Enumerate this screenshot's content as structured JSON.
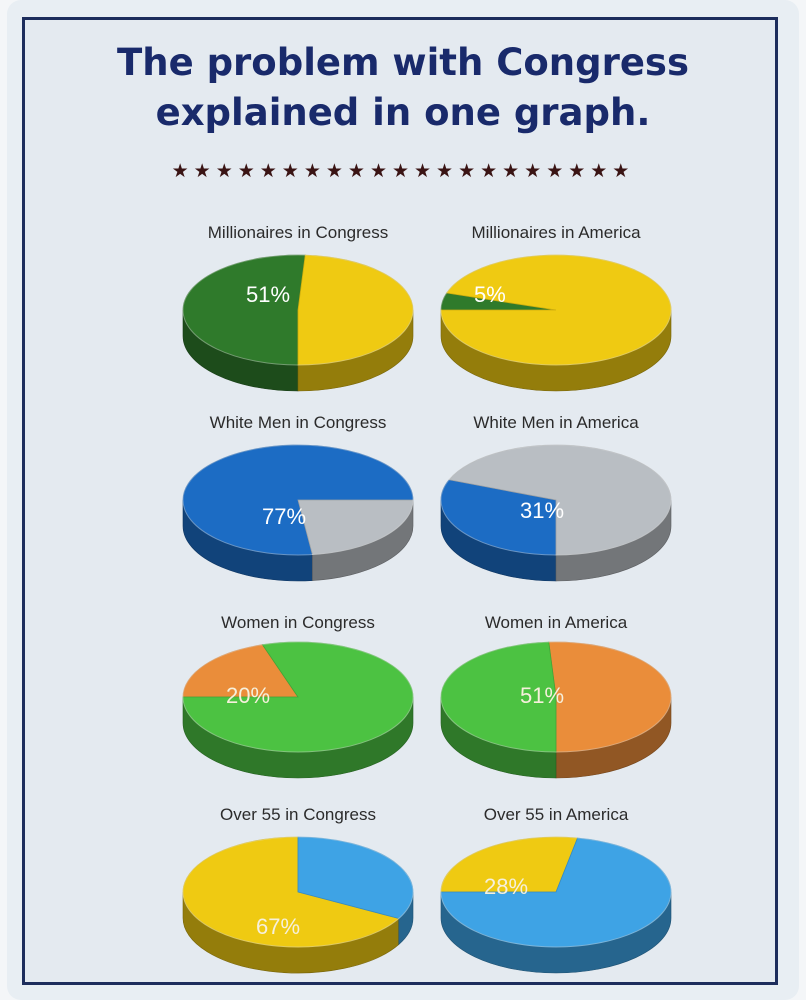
{
  "header": {
    "title_line1": "The problem with Congress",
    "title_line2": "explained in one graph.",
    "stars": "★★★★★★★★★★★★★★★★★★★★★"
  },
  "colors": {
    "green_dark": "#2f7a2b",
    "yellow": "#efca12",
    "blue": "#1c6cc4",
    "gray": "#b9bec3",
    "green_light": "#4cc242",
    "orange": "#ea8d3a",
    "sky": "#3ea3e5"
  },
  "chart_data": [
    {
      "type": "pie",
      "title": "Millionaires in Congress",
      "slices": [
        {
          "label": "51%",
          "value": 51,
          "color": "#2f7a2b"
        },
        {
          "label": "",
          "value": 49,
          "color": "#efca12"
        }
      ]
    },
    {
      "type": "pie",
      "title": "Millionaires in America",
      "slices": [
        {
          "label": "5%",
          "value": 5,
          "color": "#2f7a2b"
        },
        {
          "label": "",
          "value": 95,
          "color": "#efca12"
        }
      ]
    },
    {
      "type": "pie",
      "title": "White Men in Congress",
      "slices": [
        {
          "label": "77%",
          "value": 77,
          "color": "#1c6cc4"
        },
        {
          "label": "",
          "value": 23,
          "color": "#b9bec3"
        }
      ]
    },
    {
      "type": "pie",
      "title": "White Men in America",
      "slices": [
        {
          "label": "31%",
          "value": 31,
          "color": "#1c6cc4"
        },
        {
          "label": "",
          "value": 69,
          "color": "#b9bec3"
        }
      ]
    },
    {
      "type": "pie",
      "title": "Women in Congress",
      "slices": [
        {
          "label": "20%",
          "value": 20,
          "color": "#ea8d3a"
        },
        {
          "label": "",
          "value": 80,
          "color": "#4cc242"
        }
      ]
    },
    {
      "type": "pie",
      "title": "Women in America",
      "slices": [
        {
          "label": "51%",
          "value": 51,
          "color": "#ea8d3a"
        },
        {
          "label": "",
          "value": 49,
          "color": "#4cc242"
        }
      ]
    },
    {
      "type": "pie",
      "title": "Over 55 in Congress",
      "slices": [
        {
          "label": "67%",
          "value": 67,
          "color": "#efca12"
        },
        {
          "label": "",
          "value": 33,
          "color": "#3ea3e5"
        }
      ]
    },
    {
      "type": "pie",
      "title": "Over 55 in America",
      "slices": [
        {
          "label": "28%",
          "value": 28,
          "color": "#efca12"
        },
        {
          "label": "",
          "value": 72,
          "color": "#3ea3e5"
        }
      ]
    }
  ]
}
